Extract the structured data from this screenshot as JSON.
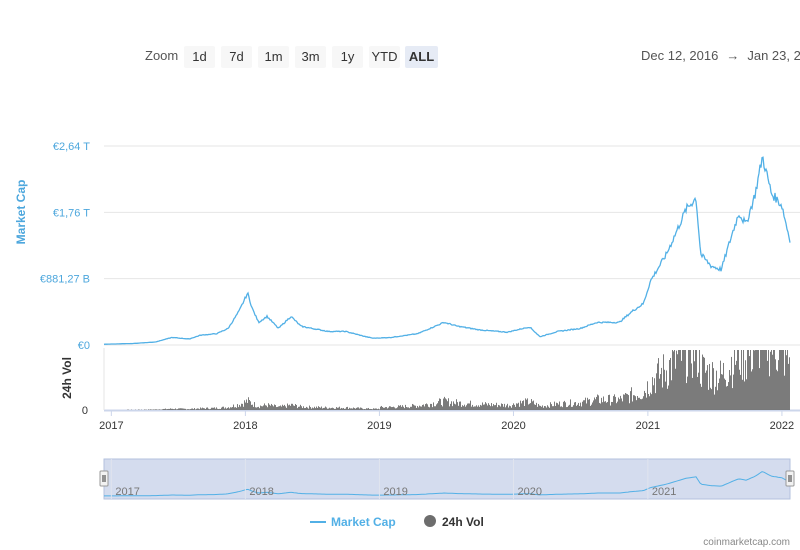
{
  "toolbar": {
    "zoom_label": "Zoom",
    "buttons": [
      "1d",
      "7d",
      "1m",
      "3m",
      "1y",
      "YTD",
      "ALL"
    ],
    "active": "ALL",
    "range_from": "Dec 12, 2016",
    "range_arrow": "→",
    "range_to": "Jan 23, 2"
  },
  "legend": {
    "market_cap": "Market Cap",
    "volume": "24h Vol"
  },
  "credit": "coinmarketcap.com",
  "colors": {
    "line": "#52b0e6",
    "volume": "#6d6d6d",
    "navigator_fill": "#ccd6eb",
    "axis_label": "#4da7dd"
  },
  "chart_data": {
    "type": "line",
    "title": "",
    "ylabel": "Market Cap",
    "y2label": "24h Vol",
    "x_ticks": [
      "2017",
      "2018",
      "2019",
      "2020",
      "2021",
      "2022"
    ],
    "y_ticks": [
      "€0",
      "€881,27 B",
      "€1,76 T",
      "€2,64 T"
    ],
    "y2_ticks": [
      "0"
    ],
    "ylim": [
      0,
      2.64
    ],
    "y_unit": "trillion EUR",
    "xlim": [
      "2016-12-12",
      "2022-01-23"
    ],
    "grid": true,
    "legend_position": "bottom-center",
    "series": [
      {
        "name": "Market Cap",
        "x": [
          "2016-12-12",
          "2017-03-01",
          "2017-05-01",
          "2017-06-15",
          "2017-08-01",
          "2017-09-01",
          "2017-10-15",
          "2017-11-15",
          "2017-12-15",
          "2018-01-07",
          "2018-01-20",
          "2018-02-06",
          "2018-03-01",
          "2018-04-01",
          "2018-05-05",
          "2018-06-01",
          "2018-07-01",
          "2018-08-15",
          "2018-10-01",
          "2018-11-25",
          "2018-12-15",
          "2019-02-01",
          "2019-04-15",
          "2019-06-26",
          "2019-08-01",
          "2019-10-01",
          "2019-12-15",
          "2020-02-14",
          "2020-03-13",
          "2020-05-01",
          "2020-07-01",
          "2020-08-15",
          "2020-10-15",
          "2020-11-20",
          "2020-12-20",
          "2021-01-08",
          "2021-02-20",
          "2021-03-15",
          "2021-04-15",
          "2021-05-12",
          "2021-05-25",
          "2021-06-22",
          "2021-07-20",
          "2021-08-20",
          "2021-09-06",
          "2021-09-25",
          "2021-10-20",
          "2021-11-09",
          "2021-12-04",
          "2021-12-15",
          "2022-01-01",
          "2022-01-15",
          "2022-01-23"
        ],
        "values": [
          0.01,
          0.02,
          0.04,
          0.1,
          0.08,
          0.13,
          0.15,
          0.22,
          0.45,
          0.69,
          0.48,
          0.3,
          0.38,
          0.22,
          0.38,
          0.25,
          0.22,
          0.18,
          0.18,
          0.11,
          0.09,
          0.1,
          0.15,
          0.3,
          0.25,
          0.2,
          0.17,
          0.24,
          0.11,
          0.18,
          0.22,
          0.3,
          0.3,
          0.45,
          0.55,
          0.85,
          1.2,
          1.45,
          1.8,
          1.95,
          1.2,
          1.05,
          1.0,
          1.5,
          1.75,
          1.6,
          2.0,
          2.5,
          2.0,
          1.95,
          1.85,
          1.55,
          1.4
        ]
      }
    ],
    "volume_note": "24h Vol shown as histogram, unlabeled scale beyond 0"
  }
}
